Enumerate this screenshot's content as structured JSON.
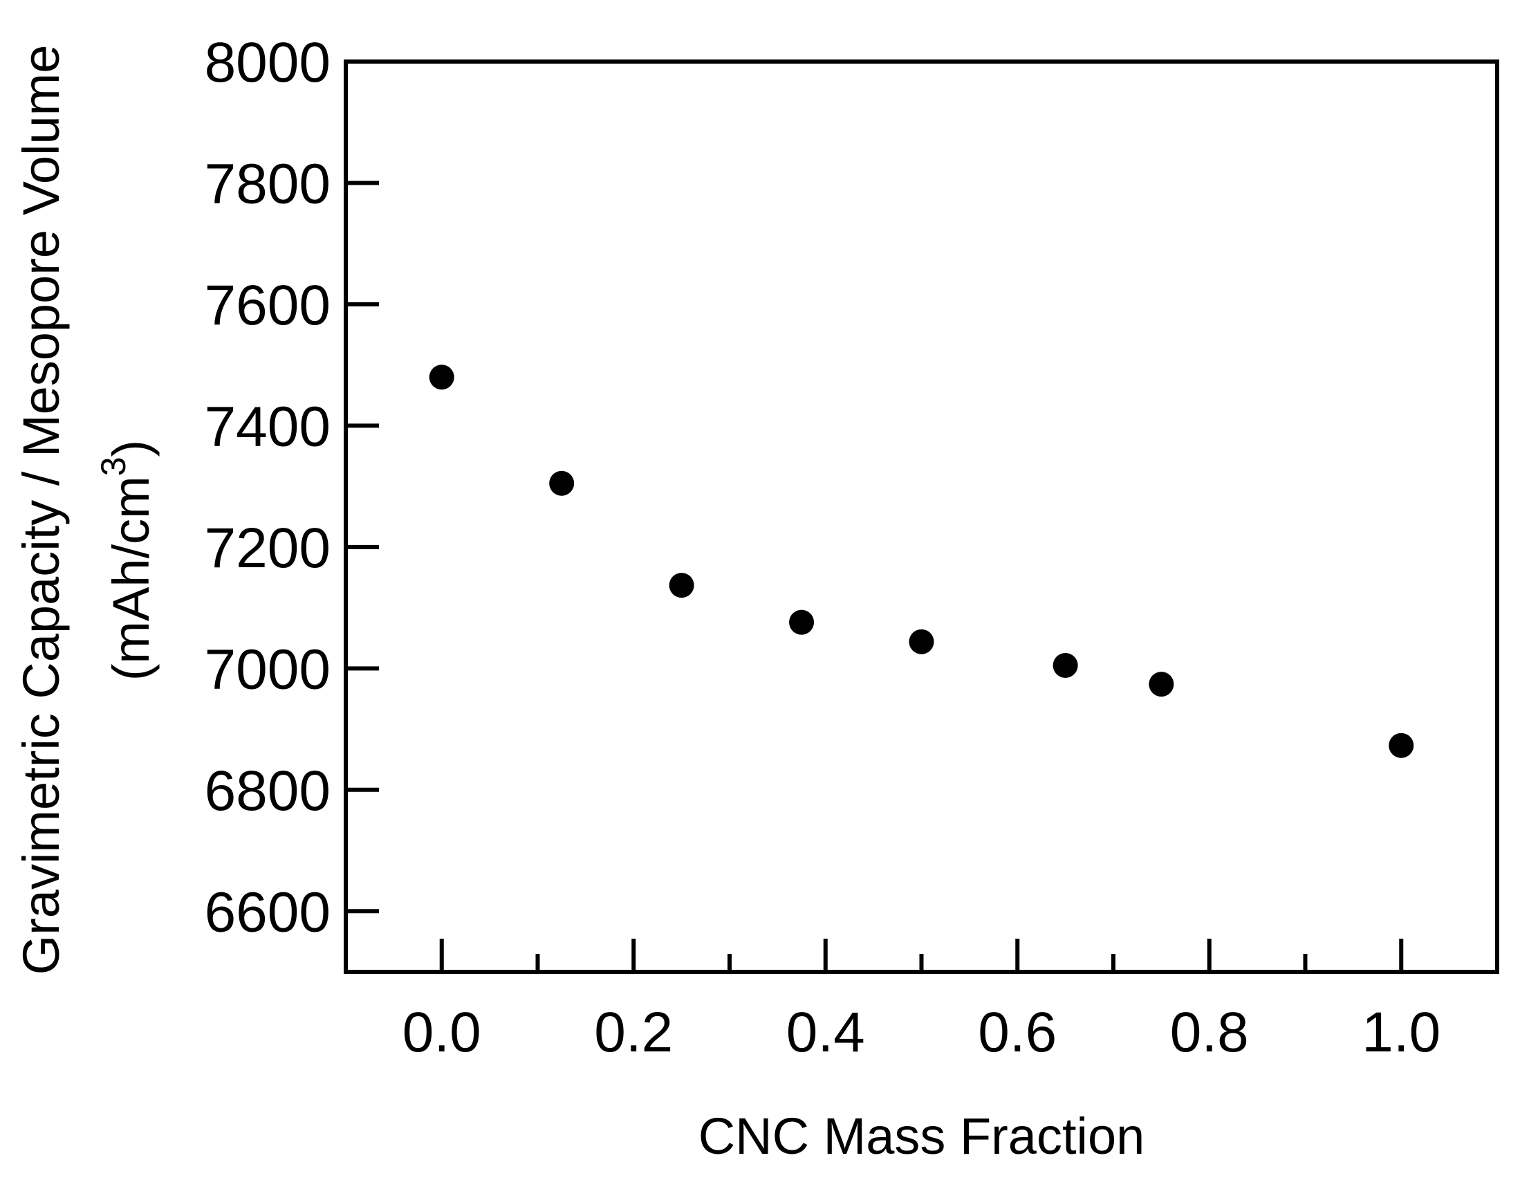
{
  "chart_data": {
    "type": "scatter",
    "title": "",
    "xlabel": "CNC Mass Fraction",
    "ylabel_line1": "Gravimetric Capacity / Mesopore Volume",
    "ylabel_line2_prefix": "(mAh/cm",
    "ylabel_line2_sup": "3",
    "ylabel_line2_suffix": ")",
    "xlim": [
      -0.1,
      1.1
    ],
    "ylim": [
      6500,
      8000
    ],
    "x_ticks": [
      0.0,
      0.1,
      0.2,
      0.3,
      0.4,
      0.5,
      0.6,
      0.7,
      0.8,
      0.9,
      1.0
    ],
    "x_tick_labels": [
      "0.0",
      "0.2",
      "0.4",
      "0.6",
      "0.8",
      "1.0"
    ],
    "x_tick_label_values": [
      0.0,
      0.2,
      0.4,
      0.6,
      0.8,
      1.0
    ],
    "y_ticks": [
      6600,
      6800,
      7000,
      7200,
      7400,
      7600,
      7800,
      8000
    ],
    "y_tick_labels": [
      "6600",
      "6800",
      "7000",
      "7200",
      "7400",
      "7600",
      "7800",
      "8000"
    ],
    "grid": false,
    "series": [
      {
        "marker": "circle",
        "color": "#000000",
        "x": [
          0.0,
          0.125,
          0.25,
          0.375,
          0.5,
          0.65,
          0.75,
          1.0
        ],
        "y": [
          7480,
          7305,
          7137,
          7076,
          7044,
          7005,
          6974,
          6873
        ]
      }
    ]
  }
}
